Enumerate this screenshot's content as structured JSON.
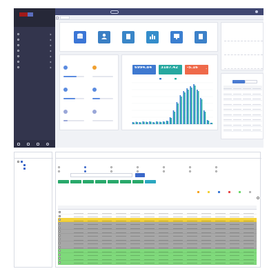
{
  "header": {
    "title": "",
    "tab_home": "",
    "tab_current": "",
    "user": "",
    "breadcrumb": ""
  },
  "sidebar": {
    "system_name": "",
    "items": [
      {
        "label": ""
      },
      {
        "label": ""
      },
      {
        "label": ""
      },
      {
        "label": ""
      },
      {
        "label": ""
      },
      {
        "label": ""
      },
      {
        "label": ""
      }
    ]
  },
  "quick_entry": {
    "title": "",
    "items": [
      {
        "label": "",
        "color": "#3b76d6"
      },
      {
        "label": "",
        "color": "#3a7fc4"
      },
      {
        "label": "",
        "color": "#3a86c8"
      },
      {
        "label": "",
        "color": "#348dcb"
      },
      {
        "label": "",
        "color": "#3b7fd0"
      },
      {
        "label": "",
        "color": "#3c81c9"
      }
    ]
  },
  "plant_overview": {
    "title": "",
    "items": [
      {
        "name": "",
        "value": "",
        "progress": 0.62,
        "color": "#5b8be0"
      },
      {
        "name": "",
        "value": "",
        "progress": 0.0,
        "color": "#f0a030"
      },
      {
        "name": "",
        "value": "",
        "progress": 0.55,
        "color": "#5b8be0"
      },
      {
        "name": "",
        "value": "",
        "progress": 0.35,
        "color": "#5b8be0"
      },
      {
        "name": "",
        "value": "",
        "progress": 0.2,
        "color": "#9aa7d8"
      },
      {
        "name": "",
        "value": "",
        "progress": 0.0,
        "color": "#9aa7d8"
      }
    ]
  },
  "generation": {
    "title": "",
    "stats": [
      {
        "value": "6994.84",
        "unit": "",
        "label": "",
        "color": "#3f79d0"
      },
      {
        "value": "3187.42",
        "unit": "",
        "label": "",
        "color": "#26a8a0"
      },
      {
        "value": "-5.16",
        "unit": "%",
        "label": "",
        "color": "#ef6a4a"
      }
    ]
  },
  "alerts": {
    "title": "",
    "more": "",
    "entries": [
      {
        "tag": "",
        "lines": [
          "",
          "",
          ""
        ]
      },
      {
        "tag": "",
        "lines": [
          "",
          "",
          ""
        ]
      },
      {
        "tag": "",
        "lines": [
          "",
          "",
          ""
        ]
      }
    ]
  },
  "tasks": {
    "title": "",
    "more": "",
    "tabs": [
      "",
      ""
    ],
    "rows": 9
  },
  "footer": {
    "copyright": ""
  },
  "tree": {
    "title": "",
    "root": "",
    "children": [
      "",
      ""
    ]
  },
  "filter": {
    "title": "",
    "rows": [
      [
        "",
        "",
        "",
        "",
        "",
        "",
        ""
      ],
      [
        "",
        "",
        "",
        "",
        "",
        "",
        ""
      ]
    ],
    "search_label": "",
    "search_placeholder": "",
    "search_button": ""
  },
  "toolbar": {
    "buttons": [
      {
        "label": "",
        "color": "#29a96b"
      },
      {
        "label": "",
        "color": "#29a96b"
      },
      {
        "label": "",
        "color": "#29a96b"
      },
      {
        "label": "",
        "color": "#29a96b"
      },
      {
        "label": "",
        "color": "#29a96b"
      },
      {
        "label": "",
        "color": "#29a96b"
      },
      {
        "label": "",
        "color": "#29a96b"
      },
      {
        "label": "",
        "color": "#2ba7c0"
      }
    ]
  },
  "legend": [
    {
      "label": "",
      "color": "#f5a623"
    },
    {
      "label": "",
      "color": "#f4d23a"
    },
    {
      "label": "",
      "color": "#3e7bd6"
    },
    {
      "label": "",
      "color": "#e94b4b"
    },
    {
      "label": "",
      "color": "#6fd96d"
    },
    {
      "label": "",
      "color": "#b8b8b8"
    }
  ],
  "table": {
    "title": "",
    "columns": [
      "",
      "",
      "",
      "",
      "",
      "",
      "",
      "",
      "",
      "",
      "",
      "",
      "",
      ""
    ],
    "row_colors": [
      "#ffffff",
      "#ffffff",
      "#f4d23a",
      "#a7a7a7",
      "#a7a7a7",
      "#a7a7a7",
      "#a7a7a7",
      "#a7a7a7",
      "#a7a7a7",
      "#a7a7a7",
      "#7fd97b",
      "#7fd97b",
      "#7fd97b",
      "#7fd97b"
    ]
  },
  "chart_data": {
    "type": "bar",
    "title": "",
    "categories": [
      "",
      "",
      "",
      "",
      "",
      "",
      "",
      "",
      "",
      "",
      "",
      "",
      "",
      "",
      "",
      "",
      "",
      "",
      "",
      "",
      "",
      "",
      "",
      ""
    ],
    "series": [
      {
        "name": "",
        "color": "#3a7fd0",
        "values": [
          3,
          3.5,
          3,
          4,
          3.5,
          4,
          3,
          4,
          3.5,
          4,
          5,
          10,
          20,
          32,
          42,
          48,
          52,
          55,
          58,
          50,
          38,
          20,
          6,
          2
        ]
      },
      {
        "name": "",
        "color": "#2bb3a5",
        "values": [
          2.5,
          3,
          2.5,
          3.5,
          3,
          3.5,
          2.5,
          3.5,
          3,
          3.5,
          4.5,
          9,
          18,
          30,
          40,
          46,
          50,
          53,
          56,
          48,
          36,
          18,
          5,
          2
        ]
      }
    ],
    "ylim": [
      0,
      60
    ],
    "grid": true,
    "legend": "top"
  }
}
